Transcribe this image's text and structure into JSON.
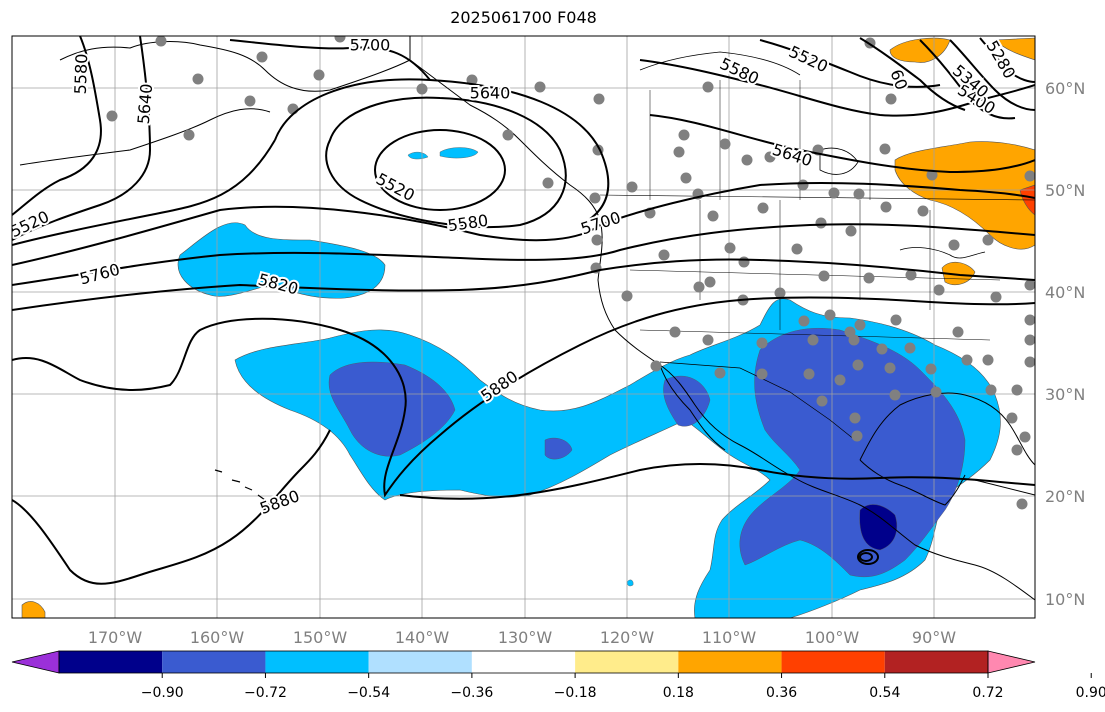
{
  "title": "2025061700 F048",
  "map": {
    "lon_labels": [
      "170°W",
      "160°W",
      "150°W",
      "140°W",
      "130°W",
      "120°W",
      "110°W",
      "100°W",
      "90°W"
    ],
    "lat_labels": [
      "60°N",
      "50°N",
      "40°N",
      "30°N",
      "20°N",
      "10°N"
    ],
    "contour_labels": [
      "5700",
      "5580",
      "5640",
      "5640",
      "5520",
      "5400",
      "5340",
      "5280",
      "60",
      "5580",
      "5520",
      "5640",
      "5520",
      "5580",
      "5700",
      "5760",
      "5820",
      "5880",
      "5880"
    ],
    "colors": {
      "land_edge": "#000000",
      "grid": "#a0a0a0",
      "tick_label": "#808080",
      "station_marker": "#808080"
    }
  },
  "colorbar": {
    "tick_labels": [
      "−0.90",
      "−0.72",
      "−0.54",
      "−0.36",
      "−0.18",
      "0.18",
      "0.36",
      "0.54",
      "0.72",
      "0.90"
    ],
    "colors": [
      "#9b30d9",
      "#00008b",
      "#3a5bd0",
      "#00bfff",
      "#b0e0ff",
      "#ffffff",
      "#ffec8b",
      "#ffa500",
      "#ff4000",
      "#b22222",
      "#ff88b0"
    ]
  }
}
